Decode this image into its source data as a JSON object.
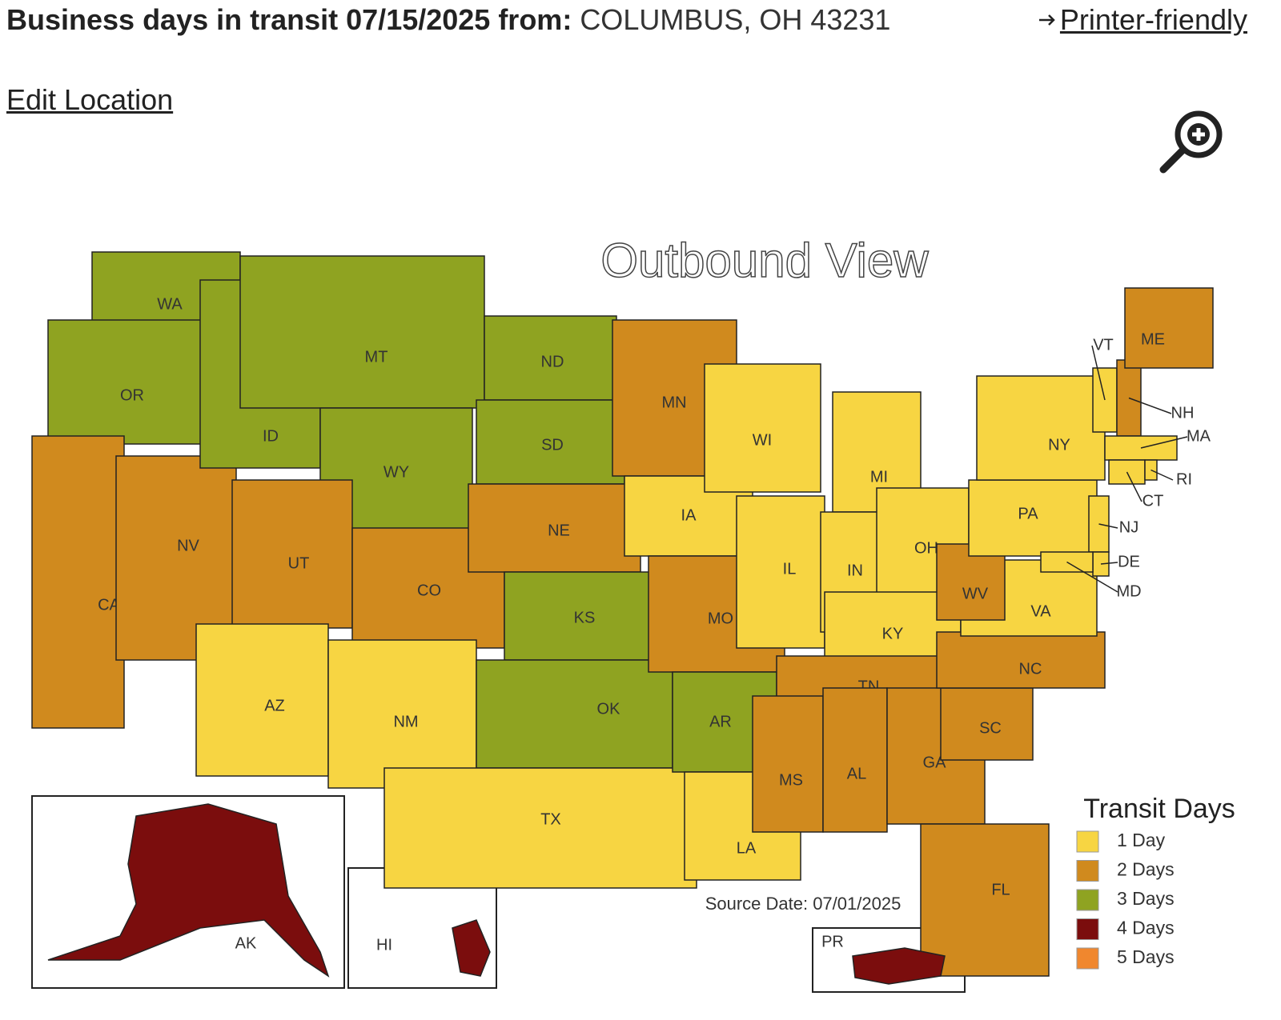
{
  "header": {
    "title": "Business days in transit 07/15/2025 from:",
    "origin": "COLUMBUS, OH 43231",
    "printer_link": "Printer-friendly",
    "edit_link": "Edit Location"
  },
  "map": {
    "title": "Outbound View",
    "source": "Source Date: 07/01/2025",
    "legend_title": "Transit Days",
    "legend": [
      {
        "label": "1 Day",
        "color": "#f7d542"
      },
      {
        "label": "2 Days",
        "color": "#d08a1e"
      },
      {
        "label": "3 Days",
        "color": "#8fa321"
      },
      {
        "label": "4 Days",
        "color": "#7b0d0d"
      },
      {
        "label": "5 Days",
        "color": "#f0872e"
      }
    ],
    "states": [
      {
        "label": "WA",
        "color": "#8fa321"
      },
      {
        "label": "OR",
        "color": "#8fa321"
      },
      {
        "label": "CA",
        "color": "#d08a1e"
      },
      {
        "label": "NV",
        "color": "#d08a1e"
      },
      {
        "label": "ID",
        "color": "#8fa321"
      },
      {
        "label": "MT",
        "color": "#8fa321"
      },
      {
        "label": "WY",
        "color": "#8fa321"
      },
      {
        "label": "UT",
        "color": "#d08a1e"
      },
      {
        "label": "AZ",
        "color": "#f7d542"
      },
      {
        "label": "CO",
        "color": "#d08a1e"
      },
      {
        "label": "NM",
        "color": "#f7d542"
      },
      {
        "label": "ND",
        "color": "#8fa321"
      },
      {
        "label": "SD",
        "color": "#8fa321"
      },
      {
        "label": "NE",
        "color": "#d08a1e"
      },
      {
        "label": "KS",
        "color": "#8fa321"
      },
      {
        "label": "OK",
        "color": "#8fa321"
      },
      {
        "label": "TX",
        "color": "#f7d542"
      },
      {
        "label": "MN",
        "color": "#d08a1e"
      },
      {
        "label": "IA",
        "color": "#f7d542"
      },
      {
        "label": "MO",
        "color": "#d08a1e"
      },
      {
        "label": "AR",
        "color": "#8fa321"
      },
      {
        "label": "LA",
        "color": "#f7d542"
      },
      {
        "label": "WI",
        "color": "#f7d542"
      },
      {
        "label": "IL",
        "color": "#f7d542"
      },
      {
        "label": "MI",
        "color": "#f7d542"
      },
      {
        "label": "IN",
        "color": "#f7d542"
      },
      {
        "label": "OH",
        "color": "#f7d542"
      },
      {
        "label": "KY",
        "color": "#f7d542"
      },
      {
        "label": "TN",
        "color": "#d08a1e"
      },
      {
        "label": "MS",
        "color": "#d08a1e"
      },
      {
        "label": "AL",
        "color": "#d08a1e"
      },
      {
        "label": "GA",
        "color": "#d08a1e"
      },
      {
        "label": "FL",
        "color": "#d08a1e"
      },
      {
        "label": "SC",
        "color": "#d08a1e"
      },
      {
        "label": "NC",
        "color": "#d08a1e"
      },
      {
        "label": "VA",
        "color": "#f7d542"
      },
      {
        "label": "WV",
        "color": "#d08a1e"
      },
      {
        "label": "PA",
        "color": "#f7d542"
      },
      {
        "label": "NY",
        "color": "#f7d542"
      },
      {
        "label": "VT",
        "color": "#f7d542"
      },
      {
        "label": "NH",
        "color": "#d08a1e"
      },
      {
        "label": "ME",
        "color": "#d08a1e"
      },
      {
        "label": "MA",
        "color": "#f7d542"
      },
      {
        "label": "CT",
        "color": "#f7d542"
      },
      {
        "label": "RI",
        "color": "#f7d542"
      },
      {
        "label": "NJ",
        "color": "#f7d542"
      },
      {
        "label": "DE",
        "color": "#f7d542"
      },
      {
        "label": "MD",
        "color": "#f7d542"
      },
      {
        "label": "AK",
        "color": "#7b0d0d"
      },
      {
        "label": "HI",
        "color": "#7b0d0d"
      },
      {
        "label": "PR",
        "color": "#7b0d0d"
      }
    ]
  }
}
